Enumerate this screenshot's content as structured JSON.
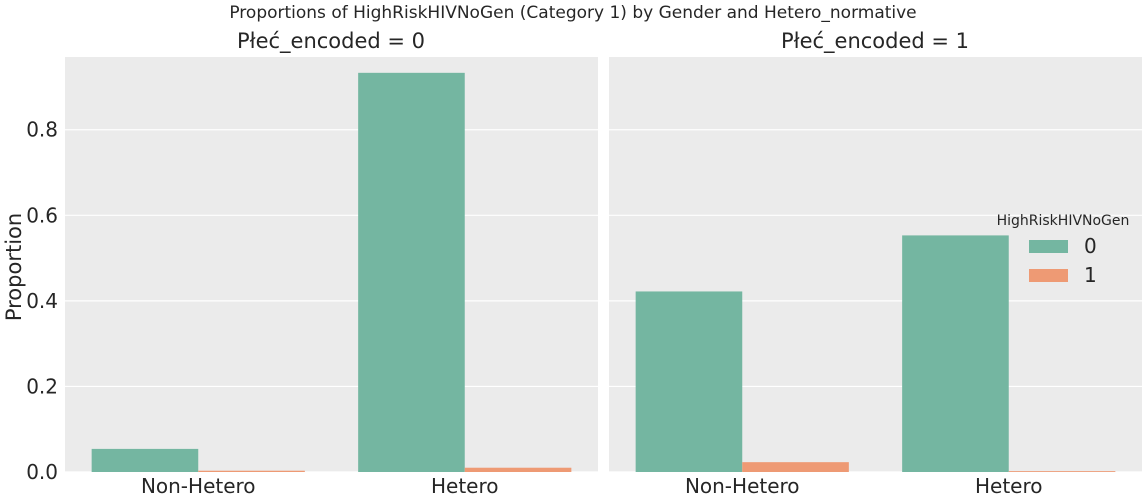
{
  "chart_data": {
    "type": "bar",
    "title": "Proportions of HighRiskHIVNoGen (Category 1) by Gender and Hetero_normative",
    "ylabel": "Proportion",
    "xlabel": "",
    "ylim": [
      0,
      0.97
    ],
    "yticks": [
      "0.0",
      "0.2",
      "0.4",
      "0.6",
      "0.8"
    ],
    "grid": true,
    "legend": {
      "title": "HighRiskHIVNoGen",
      "placement": "right",
      "entries": [
        "0",
        "1"
      ]
    },
    "colors": {
      "0": "#74b6a1",
      "1": "#ee9a74"
    },
    "categories": [
      "Non-Hetero",
      "Hetero"
    ],
    "panels": [
      {
        "title": "Płeć_encoded = 0",
        "series": [
          {
            "name": "0",
            "values": [
              0.054,
              0.933
            ]
          },
          {
            "name": "1",
            "values": [
              0.003,
              0.01
            ]
          }
        ]
      },
      {
        "title": "Płeć_encoded = 1",
        "series": [
          {
            "name": "0",
            "values": [
              0.422,
              0.553
            ]
          },
          {
            "name": "1",
            "values": [
              0.023,
              0.002
            ]
          }
        ]
      }
    ]
  }
}
